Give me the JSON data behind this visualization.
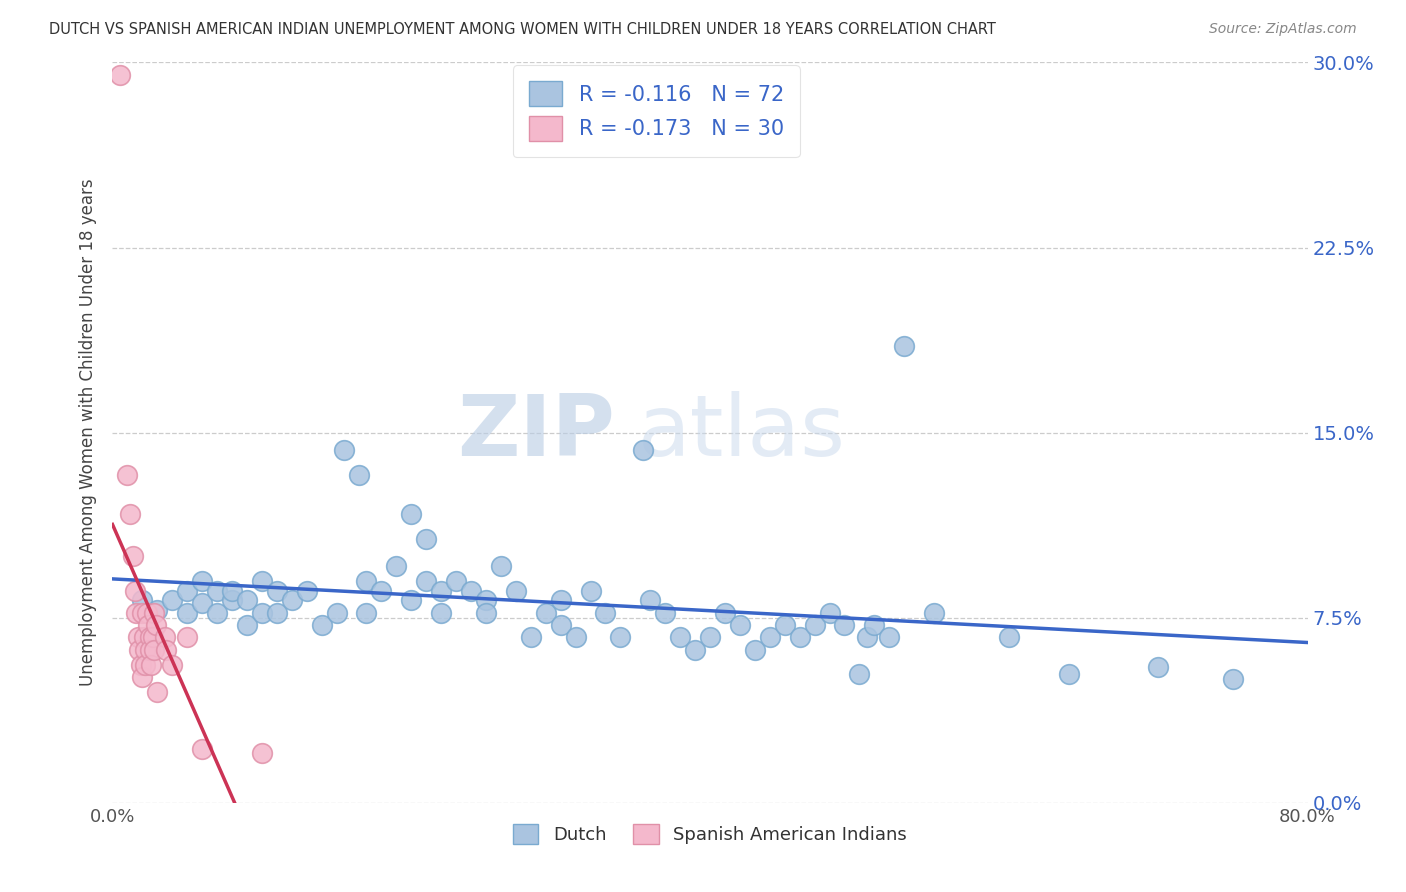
{
  "title": "DUTCH VS SPANISH AMERICAN INDIAN UNEMPLOYMENT AMONG WOMEN WITH CHILDREN UNDER 18 YEARS CORRELATION CHART",
  "source": "Source: ZipAtlas.com",
  "ylabel": "Unemployment Among Women with Children Under 18 years",
  "xlim": [
    0.0,
    0.8
  ],
  "ylim": [
    0.0,
    0.3
  ],
  "yticks": [
    0.0,
    0.075,
    0.15,
    0.225,
    0.3
  ],
  "ytick_labels": [
    "0.0%",
    "7.5%",
    "15.0%",
    "22.5%",
    "30.0%"
  ],
  "dutch_color": "#aac4e0",
  "dutch_edge_color": "#7aaad0",
  "spanish_color": "#f4b8cc",
  "spanish_edge_color": "#e090a8",
  "dutch_line_color": "#3a66c8",
  "spanish_line_color": "#cc3355",
  "spanish_dash_color": "#cccccc",
  "dutch_R": -0.116,
  "dutch_N": 72,
  "spanish_R": -0.173,
  "spanish_N": 30,
  "watermark_zip": "ZIP",
  "watermark_atlas": "atlas",
  "legend_dutch_label": "R = -0.116   N = 72",
  "legend_spanish_label": "R = -0.173   N = 30",
  "bottom_legend_dutch": "Dutch",
  "bottom_legend_spanish": "Spanish American Indians",
  "dutch_scatter": [
    [
      0.02,
      0.082
    ],
    [
      0.03,
      0.078
    ],
    [
      0.04,
      0.082
    ],
    [
      0.05,
      0.086
    ],
    [
      0.05,
      0.077
    ],
    [
      0.06,
      0.09
    ],
    [
      0.06,
      0.081
    ],
    [
      0.07,
      0.086
    ],
    [
      0.07,
      0.077
    ],
    [
      0.08,
      0.082
    ],
    [
      0.08,
      0.086
    ],
    [
      0.09,
      0.072
    ],
    [
      0.09,
      0.082
    ],
    [
      0.1,
      0.077
    ],
    [
      0.1,
      0.09
    ],
    [
      0.11,
      0.086
    ],
    [
      0.11,
      0.077
    ],
    [
      0.12,
      0.082
    ],
    [
      0.13,
      0.086
    ],
    [
      0.14,
      0.072
    ],
    [
      0.15,
      0.077
    ],
    [
      0.155,
      0.143
    ],
    [
      0.165,
      0.133
    ],
    [
      0.17,
      0.09
    ],
    [
      0.17,
      0.077
    ],
    [
      0.18,
      0.086
    ],
    [
      0.19,
      0.096
    ],
    [
      0.2,
      0.117
    ],
    [
      0.2,
      0.082
    ],
    [
      0.21,
      0.107
    ],
    [
      0.21,
      0.09
    ],
    [
      0.22,
      0.086
    ],
    [
      0.22,
      0.077
    ],
    [
      0.23,
      0.09
    ],
    [
      0.24,
      0.086
    ],
    [
      0.25,
      0.082
    ],
    [
      0.25,
      0.077
    ],
    [
      0.26,
      0.096
    ],
    [
      0.27,
      0.086
    ],
    [
      0.28,
      0.067
    ],
    [
      0.29,
      0.077
    ],
    [
      0.3,
      0.072
    ],
    [
      0.3,
      0.082
    ],
    [
      0.31,
      0.067
    ],
    [
      0.32,
      0.086
    ],
    [
      0.33,
      0.077
    ],
    [
      0.34,
      0.067
    ],
    [
      0.355,
      0.143
    ],
    [
      0.36,
      0.082
    ],
    [
      0.37,
      0.077
    ],
    [
      0.38,
      0.067
    ],
    [
      0.39,
      0.062
    ],
    [
      0.4,
      0.067
    ],
    [
      0.41,
      0.077
    ],
    [
      0.42,
      0.072
    ],
    [
      0.43,
      0.062
    ],
    [
      0.44,
      0.067
    ],
    [
      0.45,
      0.072
    ],
    [
      0.46,
      0.067
    ],
    [
      0.47,
      0.072
    ],
    [
      0.48,
      0.077
    ],
    [
      0.49,
      0.072
    ],
    [
      0.5,
      0.052
    ],
    [
      0.505,
      0.067
    ],
    [
      0.51,
      0.072
    ],
    [
      0.52,
      0.067
    ],
    [
      0.53,
      0.185
    ],
    [
      0.55,
      0.077
    ],
    [
      0.6,
      0.067
    ],
    [
      0.64,
      0.052
    ],
    [
      0.7,
      0.055
    ],
    [
      0.75,
      0.05
    ]
  ],
  "spanish_scatter": [
    [
      0.005,
      0.295
    ],
    [
      0.01,
      0.133
    ],
    [
      0.012,
      0.117
    ],
    [
      0.014,
      0.1
    ],
    [
      0.015,
      0.086
    ],
    [
      0.016,
      0.077
    ],
    [
      0.017,
      0.067
    ],
    [
      0.018,
      0.062
    ],
    [
      0.019,
      0.056
    ],
    [
      0.02,
      0.051
    ],
    [
      0.02,
      0.077
    ],
    [
      0.021,
      0.067
    ],
    [
      0.022,
      0.062
    ],
    [
      0.022,
      0.056
    ],
    [
      0.023,
      0.077
    ],
    [
      0.024,
      0.072
    ],
    [
      0.025,
      0.067
    ],
    [
      0.025,
      0.062
    ],
    [
      0.026,
      0.056
    ],
    [
      0.027,
      0.067
    ],
    [
      0.028,
      0.062
    ],
    [
      0.028,
      0.077
    ],
    [
      0.029,
      0.072
    ],
    [
      0.03,
      0.045
    ],
    [
      0.035,
      0.067
    ],
    [
      0.036,
      0.062
    ],
    [
      0.04,
      0.056
    ],
    [
      0.05,
      0.067
    ],
    [
      0.06,
      0.022
    ],
    [
      0.1,
      0.02
    ]
  ]
}
